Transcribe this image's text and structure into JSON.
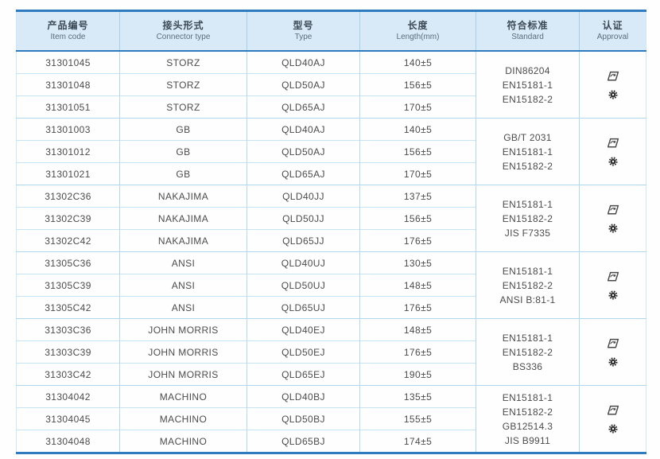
{
  "table": {
    "columns": [
      {
        "zh": "产品编号",
        "en": "Item code"
      },
      {
        "zh": "接头形式",
        "en": "Connector type"
      },
      {
        "zh": "型号",
        "en": "Type"
      },
      {
        "zh": "长度",
        "en": "Length(mm)"
      },
      {
        "zh": "符合标准",
        "en": "Standard"
      },
      {
        "zh": "认证",
        "en": "Approval"
      }
    ],
    "groups": [
      {
        "rows": [
          {
            "item_code": "31301045",
            "connector_type": "STORZ",
            "type": "QLD40AJ",
            "length": "140±5"
          },
          {
            "item_code": "31301048",
            "connector_type": "STORZ",
            "type": "QLD50AJ",
            "length": "156±5"
          },
          {
            "item_code": "31301051",
            "connector_type": "STORZ",
            "type": "QLD65AJ",
            "length": "170±5"
          }
        ],
        "standards": [
          "DIN86204",
          "EN15181-1",
          "EN15182-2"
        ],
        "approval_icons": [
          "certificate-icon",
          "gear-badge-icon"
        ]
      },
      {
        "rows": [
          {
            "item_code": "31301003",
            "connector_type": "GB",
            "type": "QLD40AJ",
            "length": "140±5"
          },
          {
            "item_code": "31301012",
            "connector_type": "GB",
            "type": "QLD50AJ",
            "length": "156±5"
          },
          {
            "item_code": "31301021",
            "connector_type": "GB",
            "type": "QLD65AJ",
            "length": "170±5"
          }
        ],
        "standards": [
          "GB/T 2031",
          "EN15181-1",
          "EN15182-2"
        ],
        "approval_icons": [
          "certificate-icon",
          "gear-badge-icon"
        ]
      },
      {
        "rows": [
          {
            "item_code": "31302C36",
            "connector_type": "NAKAJIMA",
            "type": "QLD40JJ",
            "length": "137±5"
          },
          {
            "item_code": "31302C39",
            "connector_type": "NAKAJIMA",
            "type": "QLD50JJ",
            "length": "156±5"
          },
          {
            "item_code": "31302C42",
            "connector_type": "NAKAJIMA",
            "type": "QLD65JJ",
            "length": "176±5"
          }
        ],
        "standards": [
          "EN15181-1",
          "EN15182-2",
          "JIS F7335"
        ],
        "approval_icons": [
          "certificate-icon",
          "gear-badge-icon"
        ]
      },
      {
        "rows": [
          {
            "item_code": "31305C36",
            "connector_type": "ANSI",
            "type": "QLD40UJ",
            "length": "130±5"
          },
          {
            "item_code": "31305C39",
            "connector_type": "ANSI",
            "type": "QLD50UJ",
            "length": "148±5"
          },
          {
            "item_code": "31305C42",
            "connector_type": "ANSI",
            "type": "QLD65UJ",
            "length": "176±5"
          }
        ],
        "standards": [
          "EN15181-1",
          "EN15182-2",
          "ANSI B:81-1"
        ],
        "approval_icons": [
          "certificate-icon",
          "gear-badge-icon"
        ]
      },
      {
        "rows": [
          {
            "item_code": "31303C36",
            "connector_type": "JOHN MORRIS",
            "type": "QLD40EJ",
            "length": "148±5"
          },
          {
            "item_code": "31303C39",
            "connector_type": "JOHN MORRIS",
            "type": "QLD50EJ",
            "length": "176±5"
          },
          {
            "item_code": "31303C42",
            "connector_type": "JOHN MORRIS",
            "type": "QLD65EJ",
            "length": "190±5"
          }
        ],
        "standards": [
          "EN15181-1",
          "EN15182-2",
          "BS336"
        ],
        "approval_icons": [
          "certificate-icon",
          "gear-badge-icon"
        ]
      },
      {
        "rows": [
          {
            "item_code": "31304042",
            "connector_type": "MACHINO",
            "type": "QLD40BJ",
            "length": "135±5"
          },
          {
            "item_code": "31304045",
            "connector_type": "MACHINO",
            "type": "QLD50BJ",
            "length": "155±5"
          },
          {
            "item_code": "31304048",
            "connector_type": "MACHINO",
            "type": "QLD65BJ",
            "length": "174±5"
          }
        ],
        "standards": [
          "EN15181-1",
          "EN15182-2",
          "GB12514.3",
          "JIS B9911"
        ],
        "approval_icons": [
          "certificate-icon",
          "gear-badge-icon"
        ]
      }
    ]
  },
  "colors": {
    "accent_border": "#2f7bbf",
    "header_bg": "#d8e9f7",
    "grid_line": "#b3d9ef",
    "text": "#4c4c4c"
  }
}
